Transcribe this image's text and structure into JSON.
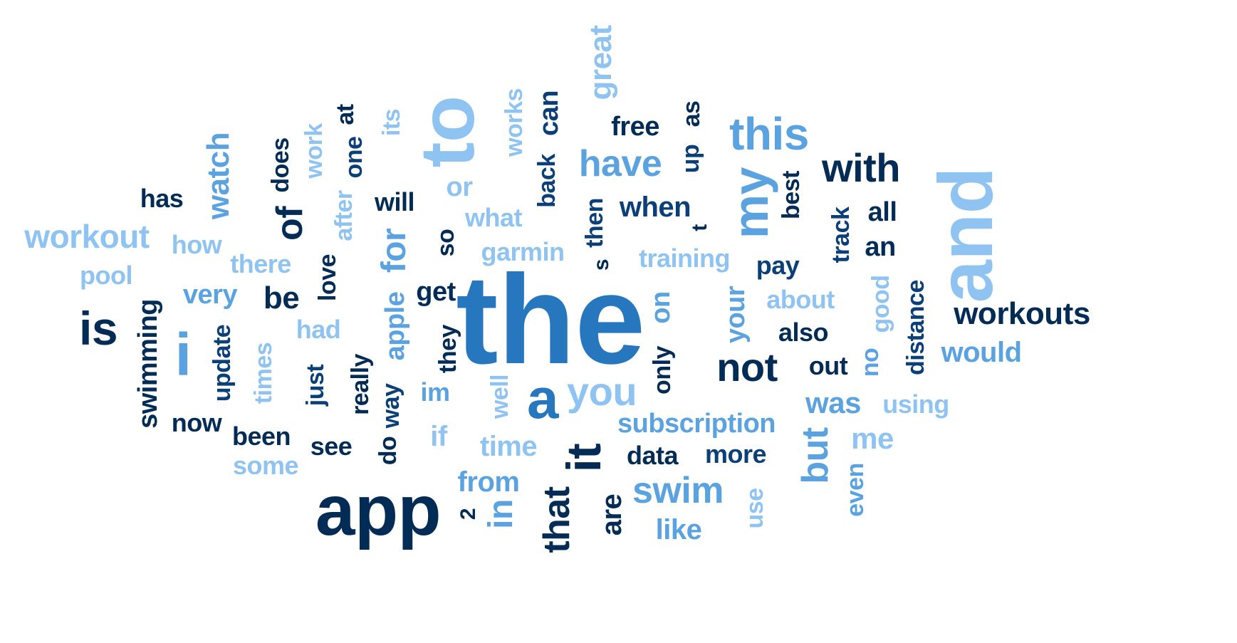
{
  "words": [
    {
      "text": "the",
      "tone": 2
    },
    {
      "text": "to",
      "tone": 4
    },
    {
      "text": "and",
      "tone": 4
    },
    {
      "text": "app",
      "tone": 0
    },
    {
      "text": "this",
      "tone": 3
    },
    {
      "text": "i",
      "tone": 3
    },
    {
      "text": "a",
      "tone": 2
    },
    {
      "text": "my",
      "tone": 3
    },
    {
      "text": "it",
      "tone": 0
    },
    {
      "text": "for",
      "tone": 3
    },
    {
      "text": "is",
      "tone": 0
    },
    {
      "text": "of",
      "tone": 0
    },
    {
      "text": "with",
      "tone": 0
    },
    {
      "text": "you",
      "tone": 4
    },
    {
      "text": "not",
      "tone": 0
    },
    {
      "text": "have",
      "tone": 3
    },
    {
      "text": "workout",
      "tone": 4
    },
    {
      "text": "workouts",
      "tone": 0
    },
    {
      "text": "swim",
      "tone": 3
    },
    {
      "text": "that",
      "tone": 0
    },
    {
      "text": "but",
      "tone": 3
    },
    {
      "text": "great",
      "tone": 4
    },
    {
      "text": "watch",
      "tone": 3
    },
    {
      "text": "swimming",
      "tone": 0
    },
    {
      "text": "subscription",
      "tone": 3
    },
    {
      "text": "can",
      "tone": 1
    },
    {
      "text": "was",
      "tone": 3
    },
    {
      "text": "in",
      "tone": 3
    },
    {
      "text": "very",
      "tone": 3
    },
    {
      "text": "when",
      "tone": 1
    },
    {
      "text": "would",
      "tone": 3
    },
    {
      "text": "like",
      "tone": 3
    },
    {
      "text": "are",
      "tone": 0
    },
    {
      "text": "me",
      "tone": 4
    },
    {
      "text": "be",
      "tone": 0
    },
    {
      "text": "from",
      "tone": 3
    },
    {
      "text": "free",
      "tone": 0
    },
    {
      "text": "time",
      "tone": 4
    },
    {
      "text": "data",
      "tone": 0
    },
    {
      "text": "more",
      "tone": 1
    },
    {
      "text": "now",
      "tone": 0
    },
    {
      "text": "been",
      "tone": 0
    },
    {
      "text": "see",
      "tone": 0
    },
    {
      "text": "training",
      "tone": 4
    },
    {
      "text": "garmin",
      "tone": 4
    },
    {
      "text": "get",
      "tone": 0
    },
    {
      "text": "apple",
      "tone": 3
    },
    {
      "text": "pay",
      "tone": 1
    },
    {
      "text": "about",
      "tone": 4
    },
    {
      "text": "also",
      "tone": 0
    },
    {
      "text": "will",
      "tone": 0
    },
    {
      "text": "has",
      "tone": 0
    },
    {
      "text": "pool",
      "tone": 4
    },
    {
      "text": "how",
      "tone": 4
    },
    {
      "text": "there",
      "tone": 4
    },
    {
      "text": "some",
      "tone": 4
    },
    {
      "text": "what",
      "tone": 4
    },
    {
      "text": "or",
      "tone": 4
    },
    {
      "text": "out",
      "tone": 0
    },
    {
      "text": "using",
      "tone": 4
    },
    {
      "text": "all",
      "tone": 0
    },
    {
      "text": "an",
      "tone": 0
    },
    {
      "text": "does",
      "tone": 0
    },
    {
      "text": "work",
      "tone": 4
    },
    {
      "text": "one",
      "tone": 1
    },
    {
      "text": "at",
      "tone": 0
    },
    {
      "text": "its",
      "tone": 4
    },
    {
      "text": "works",
      "tone": 4
    },
    {
      "text": "back",
      "tone": 1
    },
    {
      "text": "up",
      "tone": 1
    },
    {
      "text": "as",
      "tone": 0
    },
    {
      "text": "after",
      "tone": 4
    },
    {
      "text": "love",
      "tone": 0
    },
    {
      "text": "so",
      "tone": 0
    },
    {
      "text": "then",
      "tone": 1
    },
    {
      "text": "s",
      "tone": 0
    },
    {
      "text": "t",
      "tone": 0
    },
    {
      "text": "best",
      "tone": 0
    },
    {
      "text": "track",
      "tone": 1
    },
    {
      "text": "on",
      "tone": 3
    },
    {
      "text": "your",
      "tone": 3
    },
    {
      "text": "good",
      "tone": 4
    },
    {
      "text": "distance",
      "tone": 1
    },
    {
      "text": "no",
      "tone": 3
    },
    {
      "text": "update",
      "tone": 1
    },
    {
      "text": "times",
      "tone": 4
    },
    {
      "text": "had",
      "tone": 4
    },
    {
      "text": "just",
      "tone": 1
    },
    {
      "text": "really",
      "tone": 0
    },
    {
      "text": "they",
      "tone": 0
    },
    {
      "text": "way",
      "tone": 1
    },
    {
      "text": "im",
      "tone": 3
    },
    {
      "text": "well",
      "tone": 4
    },
    {
      "text": "if",
      "tone": 4
    },
    {
      "text": "do",
      "tone": 0
    },
    {
      "text": "only",
      "tone": 0
    },
    {
      "text": "2",
      "tone": 0
    },
    {
      "text": "use",
      "tone": 4
    },
    {
      "text": "even",
      "tone": 3
    },
    {
      "text": "",
      "tone": 3
    }
  ],
  "colors": [
    "#022b55",
    "#0b3f78",
    "#2777bf",
    "#5aa3e0",
    "#8fc3f1"
  ]
}
